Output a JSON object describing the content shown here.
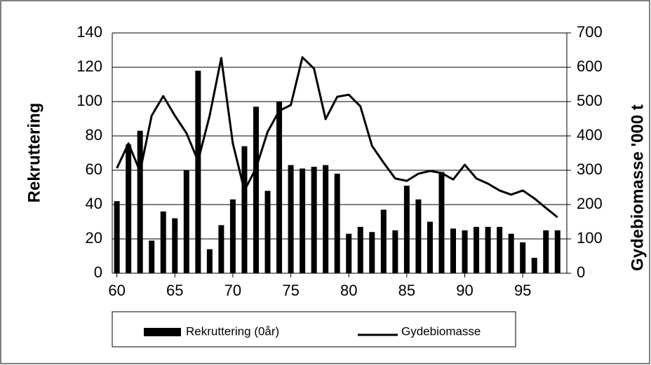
{
  "chart_data": {
    "type": "bar",
    "y_label": "Rekruttering",
    "y2_label": "Gydebiomasse '000 t",
    "x": [
      60,
      61,
      62,
      63,
      64,
      65,
      66,
      67,
      68,
      69,
      70,
      71,
      72,
      73,
      74,
      75,
      76,
      77,
      78,
      79,
      80,
      81,
      82,
      83,
      84,
      85,
      86,
      87,
      88,
      89,
      90,
      91,
      92,
      93,
      94,
      95,
      96,
      97,
      98
    ],
    "series": [
      {
        "name": "Rekruttering (0år)",
        "type": "bar",
        "color": "#000000",
        "values": [
          42,
          75,
          83,
          19,
          36,
          32,
          60,
          118,
          14,
          28,
          43,
          74,
          97,
          48,
          100,
          63,
          61,
          62,
          63,
          58,
          23,
          27,
          24,
          37,
          25,
          51,
          43,
          30,
          59,
          26,
          25,
          27,
          27,
          27,
          23,
          18,
          9,
          25,
          25
        ]
      },
      {
        "name": "Gydebiomasse",
        "type": "line",
        "axis": "y2",
        "color": "#000000",
        "values": [
          306,
          378,
          296,
          459,
          516,
          459,
          408,
          327,
          459,
          627,
          378,
          241,
          306,
          412,
          473,
          490,
          629,
          596,
          449,
          514,
          520,
          486,
          371,
          322,
          276,
          269,
          290,
          298,
          292,
          273,
          316,
          276,
          261,
          241,
          229,
          241,
          218,
          190,
          163
        ]
      }
    ],
    "xlim": [
      59.6,
      98.8
    ],
    "xticks": [
      60,
      65,
      70,
      75,
      80,
      85,
      90,
      95
    ],
    "ylim": [
      0,
      140
    ],
    "yticks": [
      0,
      20,
      40,
      60,
      80,
      100,
      120,
      140
    ],
    "y2lim": [
      0,
      700
    ],
    "y2ticks": [
      0,
      100,
      200,
      300,
      400,
      500,
      600,
      700
    ],
    "grid": true,
    "legend": "bottom"
  }
}
